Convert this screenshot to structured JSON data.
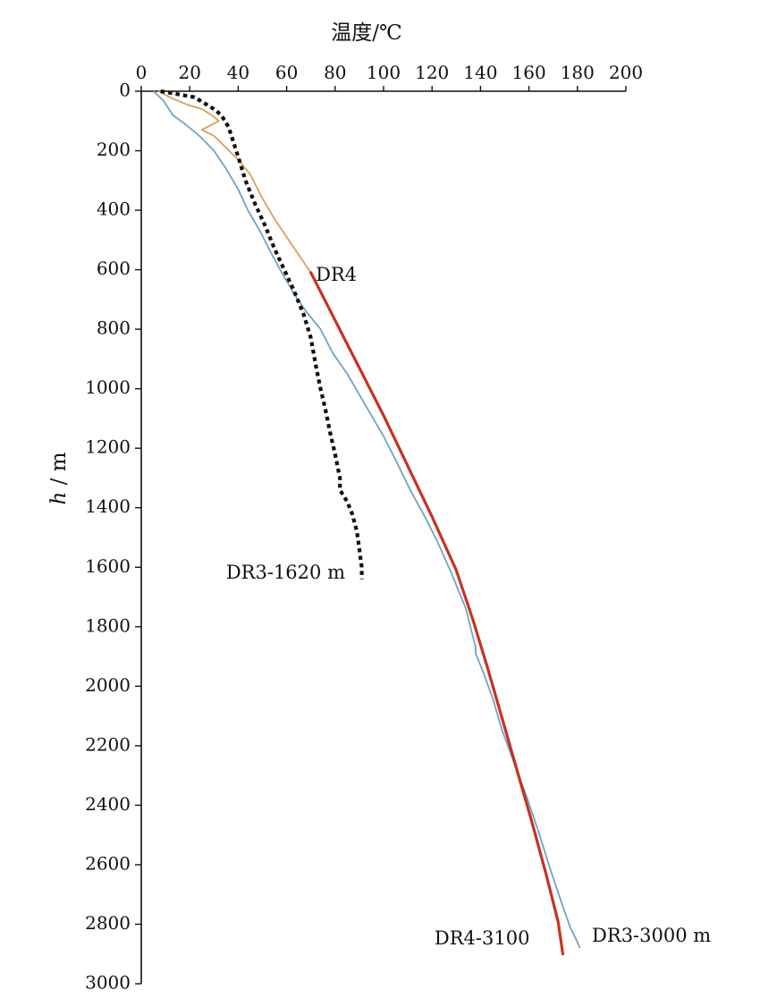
{
  "chart_data": {
    "type": "line",
    "xlabel": "温度/℃",
    "ylabel_italic": "h",
    "ylabel_unit": "/ m",
    "x_axis_position": "top",
    "y_inverted": true,
    "xlim": [
      0,
      200
    ],
    "ylim": [
      0,
      3000
    ],
    "xticks": [
      0,
      20,
      40,
      60,
      80,
      100,
      120,
      140,
      160,
      180,
      200
    ],
    "yticks": [
      0,
      200,
      400,
      600,
      800,
      1000,
      1200,
      1400,
      1600,
      1800,
      2000,
      2200,
      2400,
      2600,
      2800,
      3000
    ],
    "grid": false,
    "series": [
      {
        "key": "dr3-3000",
        "color": "#6fa3c6",
        "style": "solid",
        "points": [
          [
            5,
            0
          ],
          [
            9,
            30
          ],
          [
            13,
            80
          ],
          [
            18,
            110
          ],
          [
            24,
            150
          ],
          [
            30,
            200
          ],
          [
            35,
            260
          ],
          [
            40,
            330
          ],
          [
            44,
            400
          ],
          [
            49,
            470
          ],
          [
            54,
            550
          ],
          [
            58,
            610
          ],
          [
            63,
            680
          ],
          [
            68,
            740
          ],
          [
            74,
            800
          ],
          [
            79,
            880
          ],
          [
            85,
            950
          ],
          [
            90,
            1020
          ],
          [
            95,
            1090
          ],
          [
            100,
            1160
          ],
          [
            105,
            1240
          ],
          [
            111,
            1340
          ],
          [
            117,
            1430
          ],
          [
            122,
            1510
          ],
          [
            128,
            1620
          ],
          [
            134,
            1740
          ],
          [
            138,
            1870
          ],
          [
            138,
            1890
          ],
          [
            141,
            1950
          ],
          [
            145,
            2040
          ],
          [
            149,
            2150
          ],
          [
            154,
            2260
          ],
          [
            159,
            2370
          ],
          [
            164,
            2490
          ],
          [
            169,
            2620
          ],
          [
            174,
            2740
          ],
          [
            177,
            2810
          ],
          [
            180,
            2860
          ],
          [
            181,
            2880
          ]
        ]
      },
      {
        "key": "dr4-upper",
        "color": "#d9a05a",
        "style": "solid",
        "points": [
          [
            7,
            0
          ],
          [
            13,
            25
          ],
          [
            19,
            45
          ],
          [
            25,
            60
          ],
          [
            29,
            80
          ],
          [
            32,
            100
          ],
          [
            25,
            130
          ],
          [
            30,
            150
          ],
          [
            35,
            190
          ],
          [
            40,
            230
          ],
          [
            45,
            280
          ],
          [
            50,
            360
          ],
          [
            55,
            430
          ],
          [
            60,
            490
          ],
          [
            65,
            550
          ],
          [
            70,
            610
          ]
        ]
      },
      {
        "key": "dr4-3100",
        "color": "#c8321e",
        "style": "solid",
        "points": [
          [
            70,
            610
          ],
          [
            80,
            770
          ],
          [
            90,
            930
          ],
          [
            100,
            1090
          ],
          [
            110,
            1260
          ],
          [
            120,
            1430
          ],
          [
            130,
            1610
          ],
          [
            137,
            1780
          ],
          [
            143,
            1940
          ],
          [
            149,
            2110
          ],
          [
            155,
            2280
          ],
          [
            161,
            2450
          ],
          [
            167,
            2630
          ],
          [
            172,
            2790
          ],
          [
            174,
            2900
          ]
        ]
      },
      {
        "key": "dr3-1620",
        "color": "#111111",
        "style": "dotted",
        "points": [
          [
            8,
            0
          ],
          [
            15,
            10
          ],
          [
            22,
            20
          ],
          [
            26,
            40
          ],
          [
            30,
            60
          ],
          [
            33,
            80
          ],
          [
            36,
            120
          ],
          [
            38,
            170
          ],
          [
            40,
            220
          ],
          [
            43,
            300
          ],
          [
            47,
            380
          ],
          [
            51,
            450
          ],
          [
            55,
            530
          ],
          [
            59,
            600
          ],
          [
            63,
            670
          ],
          [
            67,
            750
          ],
          [
            70,
            830
          ],
          [
            72,
            920
          ],
          [
            74,
            1000
          ],
          [
            76,
            1070
          ],
          [
            78,
            1150
          ],
          [
            80,
            1220
          ],
          [
            82,
            1300
          ],
          [
            82,
            1340
          ],
          [
            85,
            1380
          ],
          [
            87,
            1420
          ],
          [
            89,
            1480
          ],
          [
            90,
            1540
          ],
          [
            91,
            1600
          ],
          [
            91,
            1640
          ]
        ]
      }
    ],
    "annotations": [
      {
        "key": "dr4",
        "text": "DR4",
        "x": 72,
        "y": 650
      },
      {
        "key": "dr3-1620",
        "text": "DR3-1620 m",
        "x": 35,
        "y": 1650
      },
      {
        "key": "dr4-3100",
        "text": "DR4-3100",
        "x": 121,
        "y": 2880
      },
      {
        "key": "dr3-3000",
        "text": "DR3-3000 m",
        "x": 186,
        "y": 2870
      }
    ]
  }
}
